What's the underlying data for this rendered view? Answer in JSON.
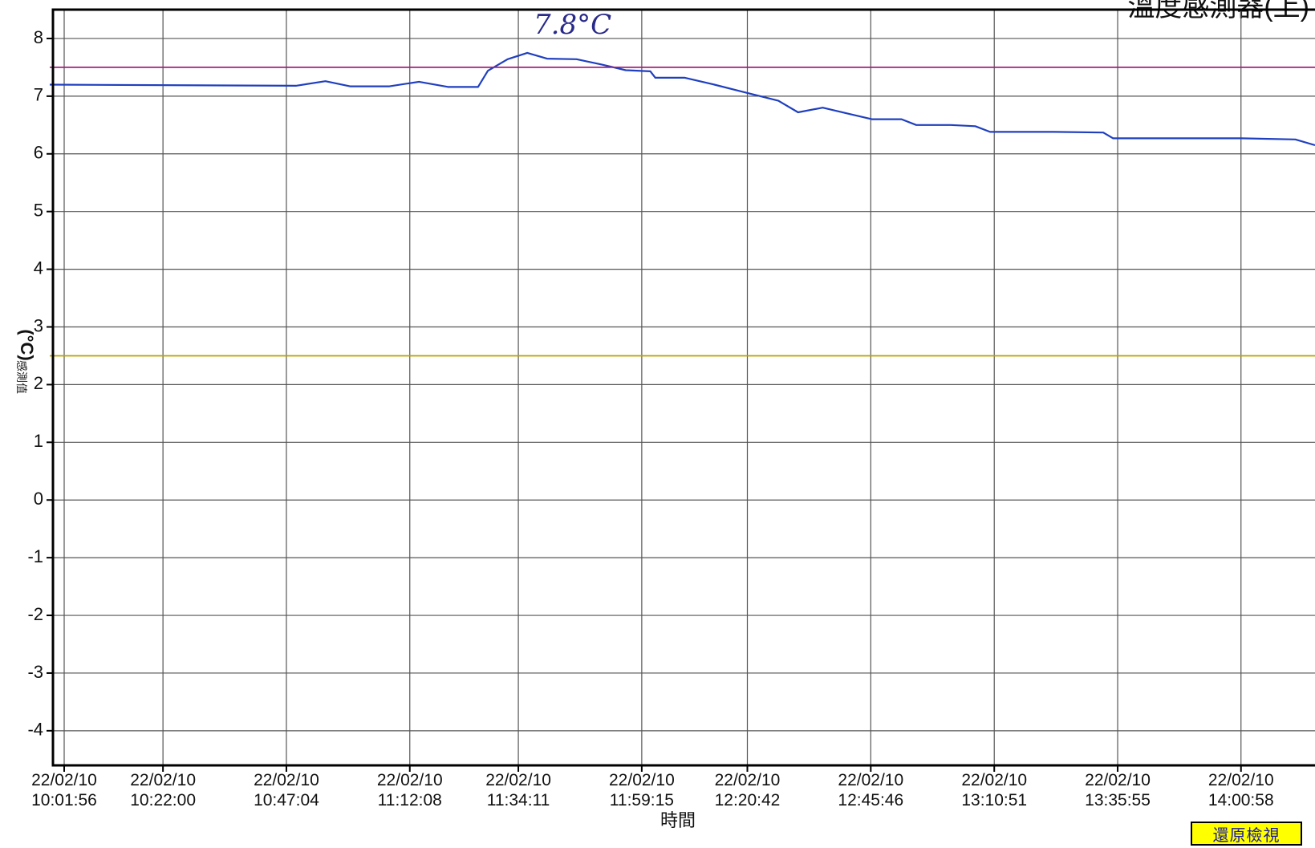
{
  "chart_data": {
    "type": "line",
    "title": "溫度感測器(上)",
    "annotation": "7.8°C",
    "xlabel": "時間",
    "ylabel": "感測值",
    "ylabel_unit": "(°C)",
    "ylim": [
      -4.6,
      8.5
    ],
    "yticks": [
      8,
      7,
      6,
      5,
      4,
      3,
      2,
      1,
      0,
      -1,
      -2,
      -3,
      -4
    ],
    "grid": true,
    "xticks": [
      {
        "date": "22/02/10",
        "time": "10:01:56"
      },
      {
        "date": "22/02/10",
        "time": "10:22:00"
      },
      {
        "date": "22/02/10",
        "time": "10:47:04"
      },
      {
        "date": "22/02/10",
        "time": "11:12:08"
      },
      {
        "date": "22/02/10",
        "time": "11:34:11"
      },
      {
        "date": "22/02/10",
        "time": "11:59:15"
      },
      {
        "date": "22/02/10",
        "time": "12:20:42"
      },
      {
        "date": "22/02/10",
        "time": "12:45:46"
      },
      {
        "date": "22/02/10",
        "time": "13:10:51"
      },
      {
        "date": "22/02/10",
        "time": "13:35:55"
      },
      {
        "date": "22/02/10",
        "time": "14:00:58"
      }
    ],
    "x_end": "14:16",
    "series": [
      {
        "name": "",
        "color": "#1f3fbf",
        "points": [
          [
            "09:59",
            7.2
          ],
          [
            "10:49",
            7.18
          ],
          [
            "10:55",
            7.26
          ],
          [
            "11:00",
            7.17
          ],
          [
            "11:08",
            7.17
          ],
          [
            "11:14",
            7.25
          ],
          [
            "11:20",
            7.16
          ],
          [
            "11:26",
            7.16
          ],
          [
            "11:28",
            7.44
          ],
          [
            "11:32",
            7.64
          ],
          [
            "11:36",
            7.75
          ],
          [
            "11:40",
            7.65
          ],
          [
            "11:46",
            7.64
          ],
          [
            "11:51",
            7.55
          ],
          [
            "11:56",
            7.45
          ],
          [
            "12:01",
            7.43
          ],
          [
            "12:02",
            7.32
          ],
          [
            "12:08",
            7.32
          ],
          [
            "12:14",
            7.2
          ],
          [
            "12:20",
            7.07
          ],
          [
            "12:27",
            6.92
          ],
          [
            "12:31",
            6.72
          ],
          [
            "12:36",
            6.8
          ],
          [
            "12:41",
            6.7
          ],
          [
            "12:46",
            6.6
          ],
          [
            "12:52",
            6.6
          ],
          [
            "12:55",
            6.5
          ],
          [
            "13:02",
            6.5
          ],
          [
            "13:07",
            6.48
          ],
          [
            "13:10",
            6.38
          ],
          [
            "13:23",
            6.38
          ],
          [
            "13:33",
            6.37
          ],
          [
            "13:35",
            6.27
          ],
          [
            "14:01",
            6.27
          ],
          [
            "14:12",
            6.25
          ],
          [
            "14:16",
            6.15
          ]
        ]
      },
      {
        "name": "",
        "color": "#a0207a",
        "points": [
          [
            "09:59",
            7.5
          ],
          [
            "14:16",
            7.5
          ]
        ]
      },
      {
        "name": "",
        "color": "#b8a200",
        "points": [
          [
            "09:59",
            2.5
          ],
          [
            "14:16",
            2.5
          ]
        ]
      }
    ]
  },
  "restore_button": "還原檢視"
}
